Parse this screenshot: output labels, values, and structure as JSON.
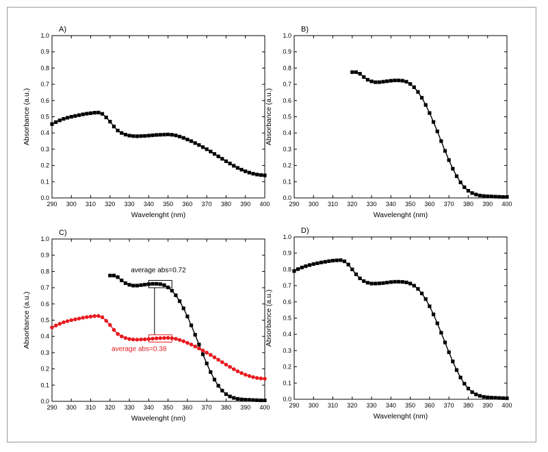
{
  "chart_data": [
    {
      "type": "scatter",
      "panel_label": "A)",
      "xlabel": "Wavelenght (nm)",
      "ylabel": "Absorbance (a.u.)",
      "xlim": [
        290,
        400
      ],
      "ylim": [
        0.0,
        1.0
      ],
      "x_ticks": [
        "290",
        "300",
        "310",
        "320",
        "330",
        "340",
        "350",
        "360",
        "370",
        "380",
        "390",
        "400"
      ],
      "y_ticks": [
        "0.0",
        "0.1",
        "0.2",
        "0.3",
        "0.4",
        "0.5",
        "0.6",
        "0.7",
        "0.8",
        "0.9",
        "1.0"
      ],
      "series": [
        {
          "color": "#000000",
          "marker": "square",
          "x": [
            290,
            292,
            294,
            296,
            298,
            300,
            302,
            304,
            306,
            308,
            310,
            312,
            314,
            316,
            318,
            320,
            322,
            324,
            326,
            328,
            330,
            332,
            334,
            336,
            338,
            340,
            342,
            344,
            346,
            348,
            350,
            352,
            354,
            356,
            358,
            360,
            362,
            364,
            366,
            368,
            370,
            372,
            374,
            376,
            378,
            380,
            382,
            384,
            386,
            388,
            390,
            392,
            394,
            396,
            398,
            400
          ],
          "y": [
            0.455,
            0.467,
            0.478,
            0.487,
            0.494,
            0.5,
            0.505,
            0.51,
            0.515,
            0.519,
            0.522,
            0.525,
            0.526,
            0.518,
            0.496,
            0.47,
            0.44,
            0.415,
            0.4,
            0.39,
            0.384,
            0.381,
            0.38,
            0.381,
            0.382,
            0.384,
            0.386,
            0.388,
            0.389,
            0.39,
            0.391,
            0.389,
            0.385,
            0.378,
            0.37,
            0.36,
            0.35,
            0.338,
            0.326,
            0.313,
            0.3,
            0.286,
            0.271,
            0.256,
            0.241,
            0.226,
            0.212,
            0.198,
            0.185,
            0.174,
            0.164,
            0.156,
            0.149,
            0.144,
            0.141,
            0.139
          ]
        }
      ]
    },
    {
      "type": "scatter",
      "panel_label": "B)",
      "xlabel": "Wavelenght (nm)",
      "ylabel": "Absorbance (a.u.)",
      "xlim": [
        290,
        400
      ],
      "ylim": [
        0.0,
        1.0
      ],
      "x_ticks": [
        "290",
        "300",
        "310",
        "320",
        "330",
        "340",
        "350",
        "360",
        "370",
        "380",
        "390",
        "400"
      ],
      "y_ticks": [
        "0.0",
        "0.1",
        "0.2",
        "0.3",
        "0.4",
        "0.5",
        "0.6",
        "0.7",
        "0.8",
        "0.9",
        "1.0"
      ],
      "series": [
        {
          "color": "#000000",
          "marker": "square",
          "x": [
            320,
            322,
            324,
            326,
            328,
            330,
            332,
            334,
            336,
            338,
            340,
            342,
            344,
            346,
            348,
            350,
            352,
            354,
            356,
            358,
            360,
            362,
            364,
            366,
            368,
            370,
            372,
            374,
            376,
            378,
            380,
            382,
            384,
            386,
            388,
            390,
            392,
            394,
            396,
            398,
            400
          ],
          "y": [
            0.775,
            0.775,
            0.765,
            0.745,
            0.728,
            0.718,
            0.713,
            0.713,
            0.716,
            0.719,
            0.722,
            0.724,
            0.724,
            0.722,
            0.716,
            0.702,
            0.682,
            0.653,
            0.617,
            0.573,
            0.523,
            0.468,
            0.41,
            0.35,
            0.29,
            0.233,
            0.18,
            0.134,
            0.096,
            0.066,
            0.044,
            0.03,
            0.021,
            0.015,
            0.012,
            0.01,
            0.009,
            0.008,
            0.007,
            0.006,
            0.006
          ]
        }
      ]
    },
    {
      "type": "scatter",
      "panel_label": "C)",
      "xlabel": "Wavelenght (nm)",
      "ylabel": "Absorbance (a.u.)",
      "xlim": [
        290,
        400
      ],
      "ylim": [
        0.0,
        1.0
      ],
      "x_ticks": [
        "290",
        "300",
        "310",
        "320",
        "330",
        "340",
        "350",
        "360",
        "370",
        "380",
        "390",
        "400"
      ],
      "y_ticks": [
        "0.0",
        "0.1",
        "0.2",
        "0.3",
        "0.4",
        "0.5",
        "0.6",
        "0.7",
        "0.8",
        "0.9",
        "1.0"
      ],
      "annotations": [
        {
          "text": "average abs=0.72",
          "color": "#000000"
        },
        {
          "text": "average abs=0.38",
          "color": "#e8191e"
        }
      ],
      "series": [
        {
          "color": "#000000",
          "marker": "square",
          "x": [
            320,
            322,
            324,
            326,
            328,
            330,
            332,
            334,
            336,
            338,
            340,
            342,
            344,
            346,
            348,
            350,
            352,
            354,
            356,
            358,
            360,
            362,
            364,
            366,
            368,
            370,
            372,
            374,
            376,
            378,
            380,
            382,
            384,
            386,
            388,
            390,
            392,
            394,
            396,
            398,
            400
          ],
          "y": [
            0.775,
            0.775,
            0.765,
            0.745,
            0.728,
            0.718,
            0.713,
            0.713,
            0.716,
            0.719,
            0.722,
            0.724,
            0.724,
            0.722,
            0.716,
            0.702,
            0.682,
            0.653,
            0.617,
            0.573,
            0.523,
            0.468,
            0.41,
            0.35,
            0.29,
            0.233,
            0.18,
            0.134,
            0.096,
            0.066,
            0.044,
            0.03,
            0.021,
            0.015,
            0.012,
            0.01,
            0.009,
            0.008,
            0.007,
            0.006,
            0.006
          ]
        },
        {
          "color": "#e8191e",
          "marker": "circle",
          "x": [
            290,
            292,
            294,
            296,
            298,
            300,
            302,
            304,
            306,
            308,
            310,
            312,
            314,
            316,
            318,
            320,
            322,
            324,
            326,
            328,
            330,
            332,
            334,
            336,
            338,
            340,
            342,
            344,
            346,
            348,
            350,
            352,
            354,
            356,
            358,
            360,
            362,
            364,
            366,
            368,
            370,
            372,
            374,
            376,
            378,
            380,
            382,
            384,
            386,
            388,
            390,
            392,
            394,
            396,
            398,
            400
          ],
          "y": [
            0.455,
            0.467,
            0.478,
            0.487,
            0.494,
            0.5,
            0.505,
            0.51,
            0.515,
            0.519,
            0.522,
            0.525,
            0.526,
            0.518,
            0.496,
            0.47,
            0.44,
            0.415,
            0.4,
            0.39,
            0.384,
            0.381,
            0.38,
            0.381,
            0.382,
            0.384,
            0.386,
            0.388,
            0.389,
            0.39,
            0.391,
            0.389,
            0.385,
            0.378,
            0.37,
            0.36,
            0.35,
            0.338,
            0.326,
            0.313,
            0.3,
            0.286,
            0.271,
            0.256,
            0.241,
            0.226,
            0.212,
            0.198,
            0.185,
            0.174,
            0.164,
            0.156,
            0.149,
            0.144,
            0.141,
            0.139
          ]
        }
      ]
    },
    {
      "type": "scatter",
      "panel_label": "D)",
      "xlabel": "Wavelenght (nm)",
      "ylabel": "Absorbance (a.u.)",
      "xlim": [
        290,
        400
      ],
      "ylim": [
        0.0,
        1.0
      ],
      "x_ticks": [
        "290",
        "300",
        "310",
        "320",
        "330",
        "340",
        "350",
        "360",
        "370",
        "380",
        "390",
        "400"
      ],
      "y_ticks": [
        "0.0",
        "0.1",
        "0.2",
        "0.3",
        "0.4",
        "0.5",
        "0.6",
        "0.7",
        "0.8",
        "0.9",
        "1.0"
      ],
      "series": [
        {
          "color": "#000000",
          "marker": "square",
          "x": [
            290,
            292,
            294,
            296,
            298,
            300,
            302,
            304,
            306,
            308,
            310,
            312,
            314,
            316,
            318,
            320,
            322,
            324,
            326,
            328,
            330,
            332,
            334,
            336,
            338,
            340,
            342,
            344,
            346,
            348,
            350,
            352,
            354,
            356,
            358,
            360,
            362,
            364,
            366,
            368,
            370,
            372,
            374,
            376,
            378,
            380,
            382,
            384,
            386,
            388,
            390,
            392,
            394,
            396,
            398,
            400
          ],
          "y": [
            0.79,
            0.802,
            0.812,
            0.82,
            0.827,
            0.833,
            0.838,
            0.843,
            0.847,
            0.851,
            0.854,
            0.856,
            0.857,
            0.85,
            0.83,
            0.8,
            0.77,
            0.745,
            0.728,
            0.718,
            0.713,
            0.713,
            0.714,
            0.716,
            0.719,
            0.722,
            0.724,
            0.724,
            0.723,
            0.72,
            0.713,
            0.7,
            0.68,
            0.652,
            0.617,
            0.573,
            0.523,
            0.468,
            0.41,
            0.35,
            0.29,
            0.233,
            0.18,
            0.134,
            0.096,
            0.066,
            0.044,
            0.03,
            0.021,
            0.015,
            0.012,
            0.01,
            0.009,
            0.008,
            0.007,
            0.006
          ]
        }
      ]
    }
  ]
}
